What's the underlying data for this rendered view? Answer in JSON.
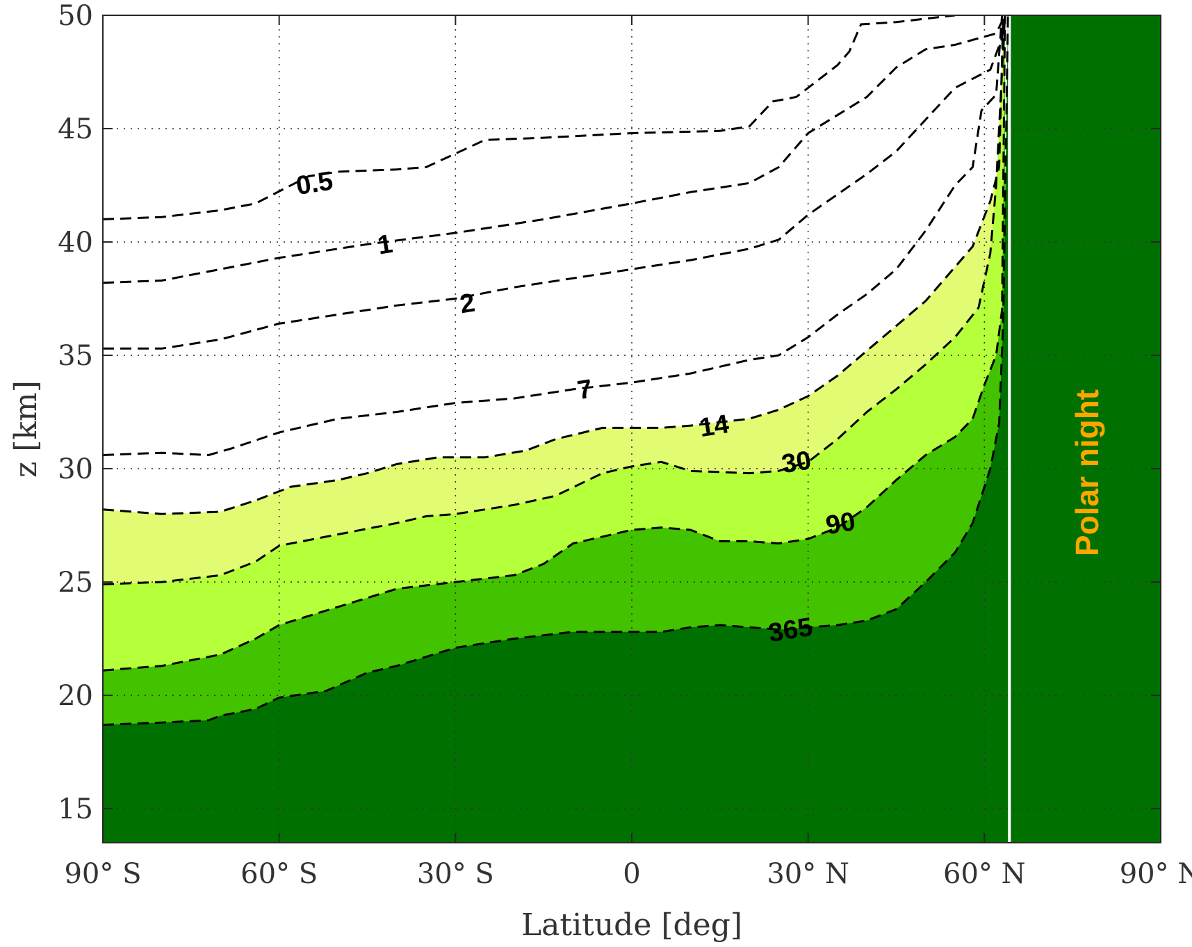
{
  "chart_data": {
    "type": "contour",
    "xlabel": "Latitude [deg]",
    "ylabel": "z [km]",
    "xlim": [
      -90,
      90
    ],
    "ylim": [
      13.5,
      50
    ],
    "grid": true,
    "x_ticks": [
      {
        "value": -90,
        "label": "90° S"
      },
      {
        "value": -60,
        "label": "60° S"
      },
      {
        "value": -30,
        "label": "30° S"
      },
      {
        "value": 0,
        "label": "0"
      },
      {
        "value": 30,
        "label": "30° N"
      },
      {
        "value": 60,
        "label": "60° N"
      },
      {
        "value": 90,
        "label": "90° N"
      }
    ],
    "y_ticks": [
      15,
      20,
      25,
      30,
      35,
      40,
      45,
      50
    ],
    "colors": {
      "level_14": "#e1fc73",
      "level_30": "#b6ff3b",
      "level_90": "#43c200",
      "level_365": "#007000",
      "polar_night": "#007000",
      "contour_line": "#000000",
      "annotation": "#ffa500"
    },
    "polar_night": {
      "label": "Polar night",
      "lat_start": 64.5
    },
    "contours": [
      {
        "level": 0.5,
        "label": "0.5",
        "label_at": [
          -54,
          42.6
        ],
        "points": [
          [
            -90,
            41.0
          ],
          [
            -80,
            41.1
          ],
          [
            -70,
            41.4
          ],
          [
            -64,
            41.7
          ],
          [
            -55,
            42.9
          ],
          [
            -50,
            43.1
          ],
          [
            -40,
            43.2
          ],
          [
            -35,
            43.3
          ],
          [
            -30,
            43.9
          ],
          [
            -25,
            44.5
          ],
          [
            -15,
            44.6
          ],
          [
            0,
            44.8
          ],
          [
            15,
            44.9
          ],
          [
            20,
            45.1
          ],
          [
            24,
            46.2
          ],
          [
            28,
            46.4
          ],
          [
            35,
            47.8
          ],
          [
            37,
            48.4
          ],
          [
            39,
            49.6
          ],
          [
            45,
            49.7
          ],
          [
            55,
            50.0
          ]
        ]
      },
      {
        "level": 1,
        "label": "1",
        "label_at": [
          -42,
          39.9
        ],
        "points": [
          [
            -90,
            38.2
          ],
          [
            -80,
            38.3
          ],
          [
            -70,
            38.8
          ],
          [
            -60,
            39.3
          ],
          [
            -45,
            39.9
          ],
          [
            -30,
            40.4
          ],
          [
            -15,
            41.0
          ],
          [
            0,
            41.7
          ],
          [
            10,
            42.2
          ],
          [
            20,
            42.6
          ],
          [
            25,
            43.3
          ],
          [
            30,
            44.8
          ],
          [
            40,
            46.4
          ],
          [
            45,
            47.7
          ],
          [
            50,
            48.5
          ],
          [
            55,
            48.7
          ],
          [
            62,
            49.2
          ],
          [
            63.5,
            50.0
          ]
        ]
      },
      {
        "level": 2,
        "label": "2",
        "label_at": [
          -28,
          37.3
        ],
        "points": [
          [
            -90,
            35.3
          ],
          [
            -80,
            35.3
          ],
          [
            -70,
            35.7
          ],
          [
            -60,
            36.4
          ],
          [
            -50,
            36.8
          ],
          [
            -40,
            37.2
          ],
          [
            -30,
            37.5
          ],
          [
            -20,
            38.0
          ],
          [
            -10,
            38.4
          ],
          [
            0,
            38.8
          ],
          [
            10,
            39.2
          ],
          [
            20,
            39.7
          ],
          [
            25,
            40.1
          ],
          [
            30,
            41.2
          ],
          [
            40,
            43.0
          ],
          [
            45,
            44.0
          ],
          [
            50,
            45.4
          ],
          [
            55,
            46.8
          ],
          [
            61,
            47.6
          ],
          [
            63,
            49.0
          ],
          [
            63.5,
            50.0
          ]
        ]
      },
      {
        "level": 7,
        "label": "7",
        "label_at": [
          -8,
          33.5
        ],
        "points": [
          [
            -90,
            30.6
          ],
          [
            -80,
            30.7
          ],
          [
            -72,
            30.6
          ],
          [
            -68,
            30.9
          ],
          [
            -60,
            31.6
          ],
          [
            -50,
            32.2
          ],
          [
            -40,
            32.5
          ],
          [
            -30,
            32.9
          ],
          [
            -20,
            33.1
          ],
          [
            -10,
            33.5
          ],
          [
            0,
            33.8
          ],
          [
            10,
            34.2
          ],
          [
            20,
            34.8
          ],
          [
            25,
            35.0
          ],
          [
            30,
            35.8
          ],
          [
            35,
            36.8
          ],
          [
            40,
            37.7
          ],
          [
            45,
            38.8
          ],
          [
            50,
            40.5
          ],
          [
            55,
            42.5
          ],
          [
            58,
            43.3
          ],
          [
            59.5,
            45.8
          ],
          [
            62,
            46.5
          ],
          [
            63,
            50.0
          ]
        ]
      },
      {
        "level": 14,
        "label": "14",
        "label_at": [
          14,
          31.9
        ],
        "points": [
          [
            -90,
            28.2
          ],
          [
            -80,
            28.0
          ],
          [
            -70,
            28.1
          ],
          [
            -64,
            28.6
          ],
          [
            -58,
            29.2
          ],
          [
            -50,
            29.5
          ],
          [
            -45,
            29.8
          ],
          [
            -40,
            30.2
          ],
          [
            -33,
            30.5
          ],
          [
            -25,
            30.5
          ],
          [
            -18,
            30.8
          ],
          [
            -13,
            31.3
          ],
          [
            -5,
            31.8
          ],
          [
            0,
            31.8
          ],
          [
            5,
            31.8
          ],
          [
            10,
            31.9
          ],
          [
            20,
            32.2
          ],
          [
            25,
            32.6
          ],
          [
            30,
            33.2
          ],
          [
            35,
            34.1
          ],
          [
            40,
            35.2
          ],
          [
            45,
            36.3
          ],
          [
            50,
            37.4
          ],
          [
            55,
            38.9
          ],
          [
            58,
            39.8
          ],
          [
            61,
            41.8
          ],
          [
            62.5,
            43.3
          ],
          [
            63.2,
            50.0
          ]
        ]
      },
      {
        "level": 30,
        "label": "30",
        "label_at": [
          28,
          30.3
        ],
        "points": [
          [
            -90,
            24.9
          ],
          [
            -80,
            25.0
          ],
          [
            -70,
            25.3
          ],
          [
            -64,
            25.9
          ],
          [
            -60,
            26.6
          ],
          [
            -50,
            27.1
          ],
          [
            -40,
            27.6
          ],
          [
            -35,
            27.9
          ],
          [
            -30,
            28.0
          ],
          [
            -20,
            28.4
          ],
          [
            -13,
            28.8
          ],
          [
            -5,
            29.8
          ],
          [
            0,
            30.1
          ],
          [
            5,
            30.3
          ],
          [
            10,
            29.9
          ],
          [
            20,
            29.8
          ],
          [
            25,
            29.9
          ],
          [
            30,
            30.3
          ],
          [
            35,
            31.3
          ],
          [
            40,
            32.5
          ],
          [
            45,
            33.5
          ],
          [
            50,
            34.6
          ],
          [
            55,
            35.8
          ],
          [
            59,
            37.1
          ],
          [
            61,
            39.5
          ],
          [
            62,
            42.5
          ],
          [
            63.5,
            50.0
          ]
        ]
      },
      {
        "level": 90,
        "label": "90",
        "label_at": [
          35.5,
          27.6
        ],
        "points": [
          [
            -90,
            21.1
          ],
          [
            -80,
            21.3
          ],
          [
            -70,
            21.8
          ],
          [
            -64,
            22.5
          ],
          [
            -60,
            23.1
          ],
          [
            -50,
            23.9
          ],
          [
            -45,
            24.3
          ],
          [
            -40,
            24.7
          ],
          [
            -30,
            25.0
          ],
          [
            -20,
            25.3
          ],
          [
            -15,
            25.8
          ],
          [
            -10,
            26.7
          ],
          [
            -5,
            27.0
          ],
          [
            0,
            27.3
          ],
          [
            5,
            27.4
          ],
          [
            10,
            27.3
          ],
          [
            15,
            26.8
          ],
          [
            20,
            26.8
          ],
          [
            25,
            26.7
          ],
          [
            30,
            26.9
          ],
          [
            35,
            27.4
          ],
          [
            40,
            28.3
          ],
          [
            45,
            29.5
          ],
          [
            50,
            30.6
          ],
          [
            55,
            31.4
          ],
          [
            58,
            32.2
          ],
          [
            60,
            33.7
          ],
          [
            62,
            35.0
          ],
          [
            63,
            37.0
          ],
          [
            63.5,
            50.0
          ]
        ]
      },
      {
        "level": 365,
        "label": "365",
        "label_at": [
          27,
          22.9
        ],
        "points": [
          [
            -90,
            18.7
          ],
          [
            -80,
            18.8
          ],
          [
            -72,
            18.9
          ],
          [
            -70,
            19.1
          ],
          [
            -64,
            19.4
          ],
          [
            -60,
            19.9
          ],
          [
            -52,
            20.2
          ],
          [
            -45,
            21.0
          ],
          [
            -40,
            21.3
          ],
          [
            -30,
            22.1
          ],
          [
            -20,
            22.5
          ],
          [
            -10,
            22.8
          ],
          [
            0,
            22.8
          ],
          [
            5,
            22.8
          ],
          [
            10,
            23.0
          ],
          [
            15,
            23.1
          ],
          [
            25,
            22.9
          ],
          [
            30,
            23.0
          ],
          [
            35,
            23.1
          ],
          [
            40,
            23.3
          ],
          [
            45,
            23.8
          ],
          [
            50,
            25.0
          ],
          [
            55,
            26.3
          ],
          [
            58,
            27.6
          ],
          [
            61,
            30.0
          ],
          [
            62.5,
            32.0
          ],
          [
            63.2,
            36.5
          ],
          [
            64,
            50.0
          ]
        ]
      }
    ]
  }
}
